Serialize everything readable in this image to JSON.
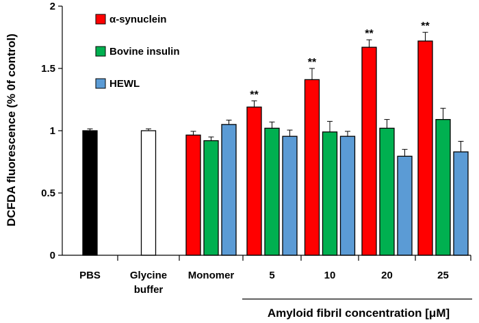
{
  "chart_data": {
    "type": "bar",
    "ylabel": "DCFDA fluorescence (% 0f control)",
    "xlabel": "Amyloid fibril concentration [μM]",
    "ylim": [
      0,
      2
    ],
    "yticks": [
      "0",
      "0.5",
      "1",
      "1.5",
      "2"
    ],
    "ytick_values": [
      0,
      0.5,
      1,
      1.5,
      2
    ],
    "grid": false,
    "legend_position": "top-left",
    "legend": [
      {
        "name": "α-synuclein",
        "color": "#ff0000"
      },
      {
        "name": "Bovine insulin",
        "color": "#00b050"
      },
      {
        "name": "HEWL",
        "color": "#5b9bd5"
      }
    ],
    "groups": [
      {
        "label": [
          "PBS"
        ],
        "bars": [
          {
            "series": "PBS",
            "value": 1.0,
            "error": 0.015,
            "color": "#000000",
            "stroke": "#000000",
            "sig": ""
          }
        ]
      },
      {
        "label": [
          "Glycine",
          "buffer"
        ],
        "bars": [
          {
            "series": "Glycine buffer",
            "value": 1.0,
            "error": 0.015,
            "color": "#ffffff",
            "stroke": "#000000",
            "sig": ""
          }
        ]
      },
      {
        "label": [
          "Monomer"
        ],
        "bars": [
          {
            "series": "α-synuclein",
            "value": 0.965,
            "error": 0.03,
            "color": "#ff0000",
            "stroke": "#000000",
            "sig": ""
          },
          {
            "series": "Bovine insulin",
            "value": 0.92,
            "error": 0.03,
            "color": "#00b050",
            "stroke": "#000000",
            "sig": ""
          },
          {
            "series": "HEWL",
            "value": 1.05,
            "error": 0.035,
            "color": "#5b9bd5",
            "stroke": "#000000",
            "sig": ""
          }
        ]
      },
      {
        "label": [
          "5"
        ],
        "bars": [
          {
            "series": "α-synuclein",
            "value": 1.19,
            "error": 0.05,
            "color": "#ff0000",
            "stroke": "#000000",
            "sig": "**"
          },
          {
            "series": "Bovine insulin",
            "value": 1.02,
            "error": 0.05,
            "color": "#00b050",
            "stroke": "#000000",
            "sig": ""
          },
          {
            "series": "HEWL",
            "value": 0.955,
            "error": 0.05,
            "color": "#5b9bd5",
            "stroke": "#000000",
            "sig": ""
          }
        ]
      },
      {
        "label": [
          "10"
        ],
        "bars": [
          {
            "series": "α-synuclein",
            "value": 1.41,
            "error": 0.09,
            "color": "#ff0000",
            "stroke": "#000000",
            "sig": "**"
          },
          {
            "series": "Bovine insulin",
            "value": 0.99,
            "error": 0.085,
            "color": "#00b050",
            "stroke": "#000000",
            "sig": ""
          },
          {
            "series": "HEWL",
            "value": 0.955,
            "error": 0.04,
            "color": "#5b9bd5",
            "stroke": "#000000",
            "sig": ""
          }
        ]
      },
      {
        "label": [
          "20"
        ],
        "bars": [
          {
            "series": "α-synuclein",
            "value": 1.67,
            "error": 0.06,
            "color": "#ff0000",
            "stroke": "#000000",
            "sig": "**"
          },
          {
            "series": "Bovine insulin",
            "value": 1.02,
            "error": 0.07,
            "color": "#00b050",
            "stroke": "#000000",
            "sig": ""
          },
          {
            "series": "HEWL",
            "value": 0.795,
            "error": 0.055,
            "color": "#5b9bd5",
            "stroke": "#000000",
            "sig": ""
          }
        ]
      },
      {
        "label": [
          "25"
        ],
        "bars": [
          {
            "series": "α-synuclein",
            "value": 1.72,
            "error": 0.07,
            "color": "#ff0000",
            "stroke": "#000000",
            "sig": "**"
          },
          {
            "series": "Bovine insulin",
            "value": 1.09,
            "error": 0.09,
            "color": "#00b050",
            "stroke": "#000000",
            "sig": ""
          },
          {
            "series": "HEWL",
            "value": 0.83,
            "error": 0.085,
            "color": "#5b9bd5",
            "stroke": "#000000",
            "sig": ""
          }
        ]
      }
    ]
  }
}
